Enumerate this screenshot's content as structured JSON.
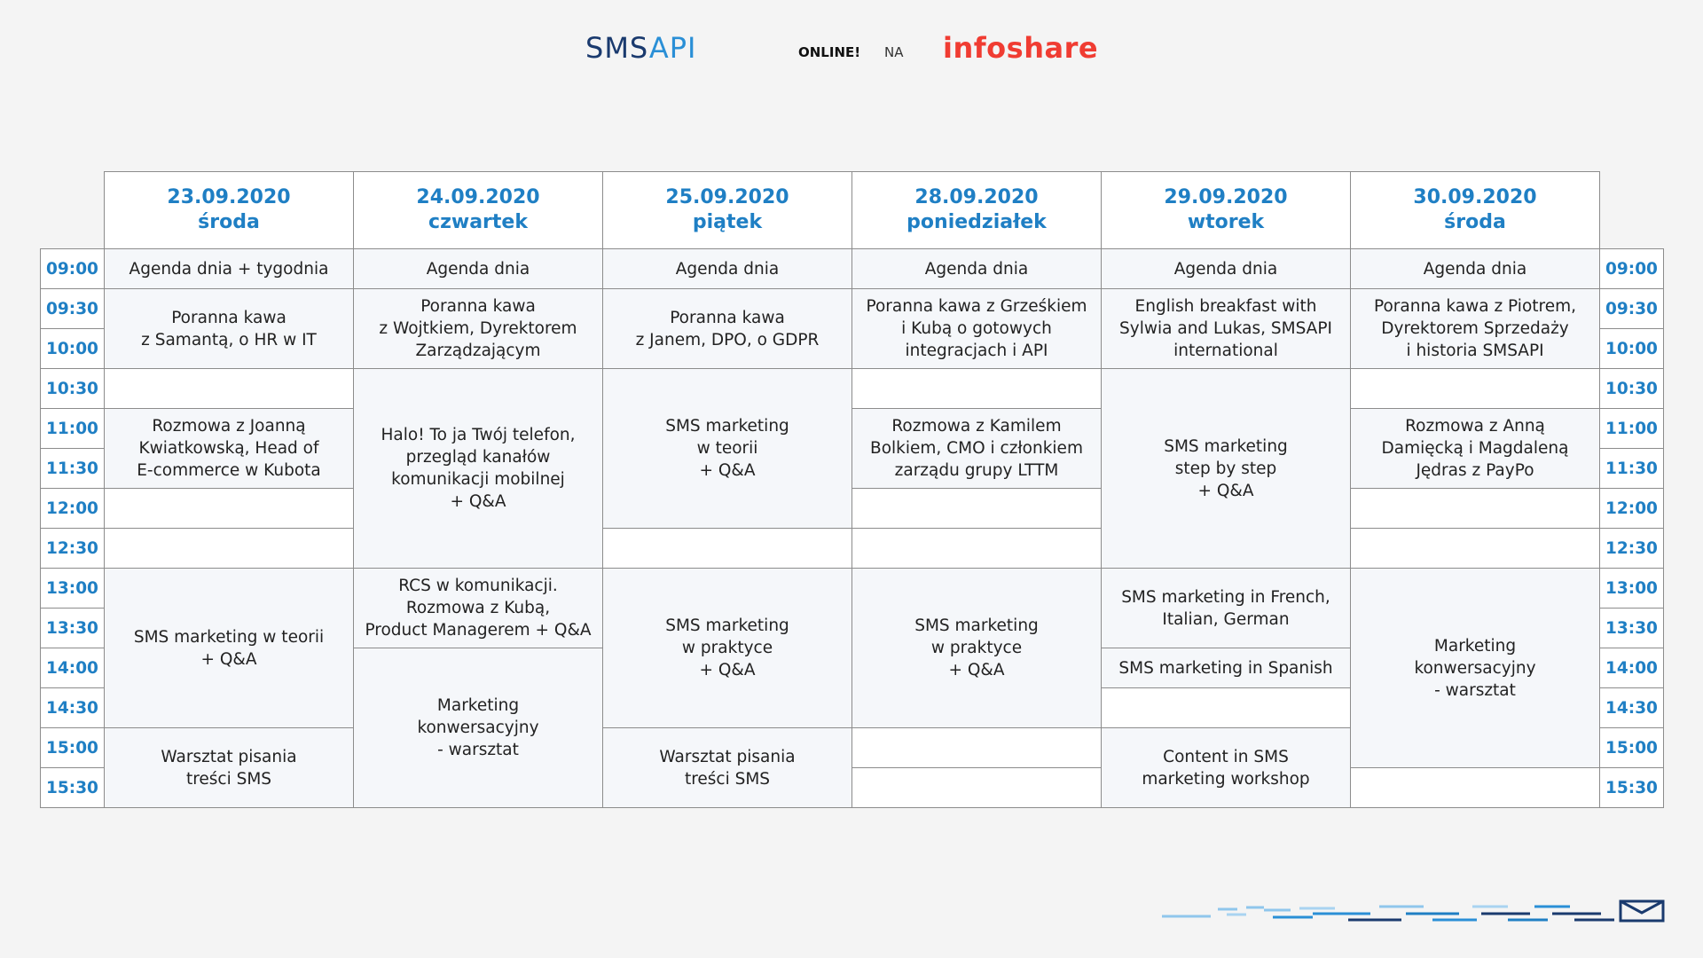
{
  "header": {
    "logo_main": "SMS",
    "logo_accent": "API",
    "online": "ONLINE!",
    "na": "NA",
    "partner_logo": "infoshare"
  },
  "colors": {
    "accent_blue": "#1f7fc4",
    "brand_navy": "#1a3a6e",
    "partner_red": "#f03c32"
  },
  "days": [
    {
      "date": "23.09.2020",
      "name": "środa"
    },
    {
      "date": "24.09.2020",
      "name": "czwartek"
    },
    {
      "date": "25.09.2020",
      "name": "piątek"
    },
    {
      "date": "28.09.2020",
      "name": "poniedziałek"
    },
    {
      "date": "29.09.2020",
      "name": "wtorek"
    },
    {
      "date": "30.09.2020",
      "name": "środa"
    }
  ],
  "times": [
    "09:00",
    "09:30",
    "10:00",
    "10:30",
    "11:00",
    "11:30",
    "12:00",
    "12:30",
    "13:00",
    "13:30",
    "14:00",
    "14:30",
    "15:00",
    "15:30"
  ],
  "sessions": {
    "d0": {
      "agenda": "Agenda dnia + tygodnia",
      "coffee": [
        "Poranna kawa",
        "z Samantą, o HR w IT"
      ],
      "interview": [
        "Rozmowa z Joanną",
        "Kwiatkowską, Head of",
        "E-commerce w Kubota"
      ],
      "sms_theory": [
        "SMS marketing w teorii",
        "+ Q&A"
      ],
      "workshop": [
        "Warsztat pisania",
        "treści SMS"
      ]
    },
    "d1": {
      "agenda": "Agenda dnia",
      "coffee": [
        "Poranna kawa",
        "z Wojtkiem, Dyrektorem",
        "Zarządzającym"
      ],
      "phone": [
        "Halo! To ja Twój telefon,",
        "przegląd kanałów",
        "komunikacji mobilnej",
        "+ Q&A"
      ],
      "rcs": [
        "RCS w komunikacji.",
        "Rozmowa z Kubą,",
        "Product Managerem + Q&A"
      ],
      "conversational": [
        "Marketing",
        "konwersacyjny",
        "- warsztat"
      ]
    },
    "d2": {
      "agenda": "Agenda dnia",
      "coffee": [
        "Poranna kawa",
        "z Janem, DPO, o GDPR"
      ],
      "sms_theory": [
        "SMS marketing",
        "w teorii",
        "+ Q&A"
      ],
      "sms_practice": [
        "SMS marketing",
        "w praktyce",
        "+ Q&A"
      ],
      "workshop": [
        "Warsztat pisania",
        "treści SMS"
      ]
    },
    "d3": {
      "agenda": "Agenda dnia",
      "coffee": [
        "Poranna kawa z Grześkiem",
        "i Kubą o gotowych",
        "integracjach i API"
      ],
      "interview": [
        "Rozmowa z Kamilem",
        "Bolkiem, CMO i członkiem",
        "zarządu grupy LTTM"
      ],
      "sms_practice": [
        "SMS marketing",
        "w praktyce",
        "+ Q&A"
      ]
    },
    "d4": {
      "agenda": "Agenda dnia",
      "breakfast": [
        "English breakfast with",
        "Sylwia and Lukas, SMSAPI",
        "international"
      ],
      "step": [
        "SMS marketing",
        "step by step",
        "+ Q&A"
      ],
      "languages": [
        "SMS marketing in French,",
        "Italian, German"
      ],
      "spanish": "SMS marketing in Spanish",
      "content": [
        "Content in SMS",
        "marketing workshop"
      ]
    },
    "d5": {
      "agenda": "Agenda dnia",
      "coffee": [
        "Poranna kawa z Piotrem,",
        "Dyrektorem Sprzedaży",
        "i historia SMSAPI"
      ],
      "interview": [
        "Rozmowa z Anną",
        "Damięcką i Magdaleną",
        "Jędras z PayPo"
      ],
      "conversational": [
        "Marketing",
        "konwersacyjny",
        "- warsztat"
      ]
    }
  }
}
